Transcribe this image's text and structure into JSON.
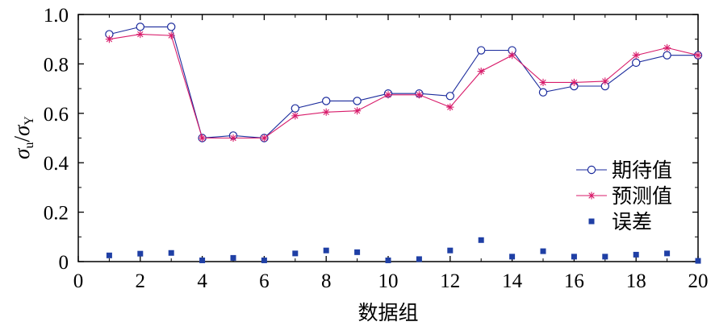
{
  "chart_data": {
    "type": "line",
    "xlabel": "数据组",
    "ylabel": {
      "sigma": "σ",
      "sub_u": "u",
      "slash": "/",
      "sub_y": "Y"
    },
    "xlim": [
      0,
      20
    ],
    "ylim": [
      0,
      1.0
    ],
    "xticks": [
      "0",
      "2",
      "4",
      "6",
      "8",
      "10",
      "12",
      "14",
      "16",
      "18",
      "20"
    ],
    "yticks": [
      "0",
      "0.2",
      "0.4",
      "0.6",
      "0.8",
      "1.0"
    ],
    "x": [
      1,
      2,
      3,
      4,
      5,
      6,
      7,
      8,
      9,
      10,
      11,
      12,
      13,
      14,
      15,
      16,
      17,
      18,
      19,
      20
    ],
    "series": [
      {
        "name": "期待值",
        "color": "#1a2a9c",
        "marker": "open-circle",
        "values": [
          0.92,
          0.95,
          0.95,
          0.5,
          0.51,
          0.5,
          0.62,
          0.65,
          0.65,
          0.68,
          0.68,
          0.67,
          0.855,
          0.855,
          0.685,
          0.71,
          0.71,
          0.805,
          0.835,
          0.835
        ]
      },
      {
        "name": "预测值",
        "color": "#d81b6a",
        "marker": "asterisk",
        "values": [
          0.9,
          0.92,
          0.915,
          0.5,
          0.5,
          0.5,
          0.59,
          0.605,
          0.61,
          0.675,
          0.675,
          0.625,
          0.77,
          0.835,
          0.725,
          0.725,
          0.73,
          0.835,
          0.865,
          0.835
        ]
      },
      {
        "name": "误差",
        "color": "#1f3fa5",
        "marker": "filled-square",
        "line": false,
        "values": [
          0.025,
          0.032,
          0.035,
          0.005,
          0.015,
          0.005,
          0.033,
          0.045,
          0.038,
          0.005,
          0.01,
          0.045,
          0.087,
          0.02,
          0.042,
          0.02,
          0.02,
          0.028,
          0.033,
          0.003
        ]
      }
    ],
    "legend_position": "bottom-right",
    "grid": false
  }
}
